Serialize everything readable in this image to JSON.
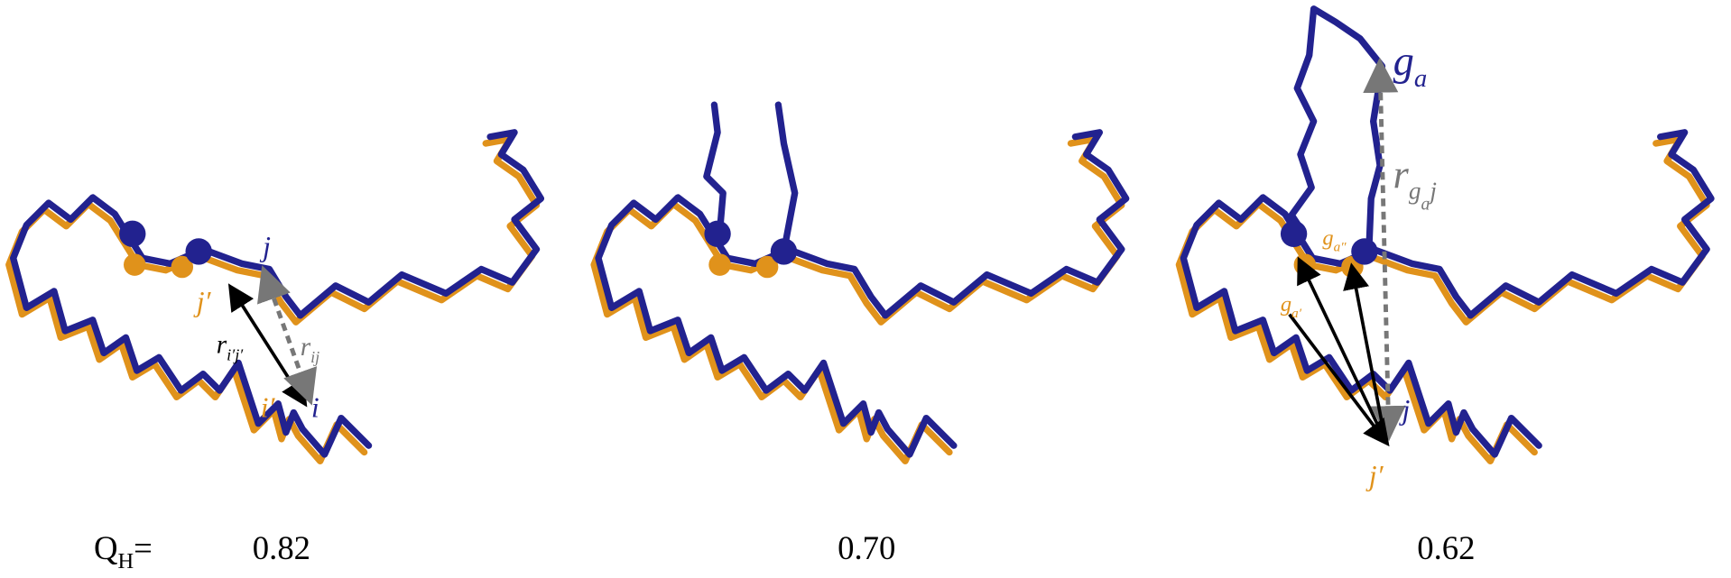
{
  "panels": [
    {
      "value": "0.82",
      "labels": [
        {
          "parts": [
            {
              "text": "j"
            }
          ]
        },
        {
          "parts": [
            {
              "text": "j′"
            }
          ]
        },
        {
          "parts": [
            {
              "text": "r"
            },
            {
              "sub": "i′j′"
            }
          ]
        },
        {
          "parts": [
            {
              "text": "r"
            },
            {
              "sub": "ij"
            }
          ]
        },
        {
          "parts": [
            {
              "text": "i′"
            }
          ]
        },
        {
          "parts": [
            {
              "text": "i"
            }
          ]
        }
      ]
    },
    {
      "value": "0.70",
      "labels": []
    },
    {
      "value": "0.62",
      "labels": [
        {
          "parts": [
            {
              "text": "g"
            },
            {
              "sub": "a"
            }
          ]
        },
        {
          "parts": [
            {
              "text": "r"
            },
            {
              "sub": "g"
            },
            {
              "subsub": "a"
            },
            {
              "sub": "j"
            }
          ]
        },
        {
          "parts": [
            {
              "text": "g"
            },
            {
              "sub": "a″"
            }
          ]
        },
        {
          "parts": [
            {
              "text": "g"
            },
            {
              "sub": "a′"
            }
          ]
        },
        {
          "parts": [
            {
              "text": "j"
            }
          ]
        },
        {
          "parts": [
            {
              "text": "j′"
            }
          ]
        }
      ]
    }
  ],
  "order_parameter": {
    "text": "Q",
    "sub": "H",
    "suffix": "="
  }
}
